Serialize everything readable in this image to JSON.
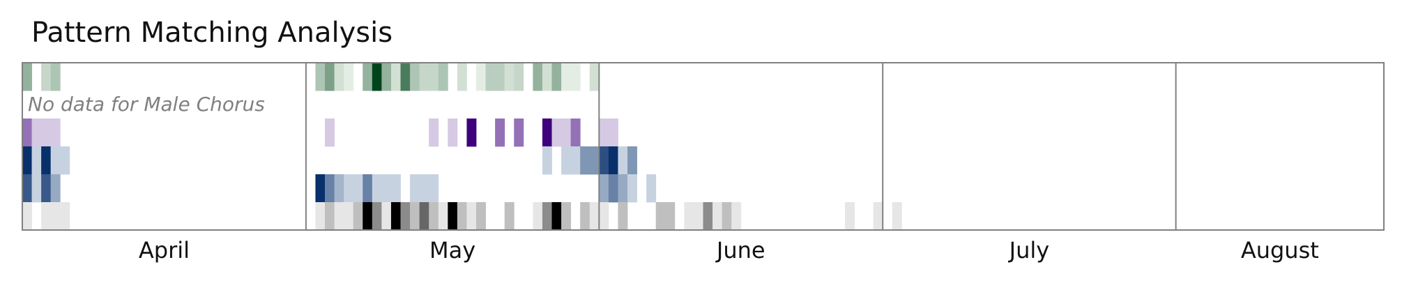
{
  "chart_data": {
    "type": "heatmap",
    "title": "Pattern Matching Analysis",
    "xlabel": "",
    "ylabel": "",
    "x_range": [
      "2024-04-01",
      "2024-08-23"
    ],
    "month_labels": [
      "April",
      "May",
      "June",
      "July",
      "August"
    ],
    "month_boundaries": [
      "2024-04-01",
      "2024-05-01",
      "2024-06-01",
      "2024-07-01",
      "2024-08-01",
      "2024-08-23"
    ],
    "intensity_scale": [
      0,
      1
    ],
    "rows": [
      {
        "color": "#00441b",
        "colormap": "green",
        "cells": [
          [
            "2024-04-01",
            0.4
          ],
          [
            "2024-04-03",
            0.2
          ],
          [
            "2024-04-04",
            0.3
          ],
          [
            "2024-05-02",
            0.3
          ],
          [
            "2024-05-03",
            0.5
          ],
          [
            "2024-05-04",
            0.15
          ],
          [
            "2024-05-05",
            0.08
          ],
          [
            "2024-05-07",
            0.4
          ],
          [
            "2024-05-08",
            1.0
          ],
          [
            "2024-05-09",
            0.4
          ],
          [
            "2024-05-10",
            0.15
          ],
          [
            "2024-05-11",
            0.7
          ],
          [
            "2024-05-12",
            0.3
          ],
          [
            "2024-05-13",
            0.2
          ],
          [
            "2024-05-14",
            0.2
          ],
          [
            "2024-05-15",
            0.3
          ],
          [
            "2024-05-17",
            0.15
          ],
          [
            "2024-05-19",
            0.08
          ],
          [
            "2024-05-20",
            0.25
          ],
          [
            "2024-05-21",
            0.25
          ],
          [
            "2024-05-22",
            0.15
          ],
          [
            "2024-05-23",
            0.2
          ],
          [
            "2024-05-25",
            0.4
          ],
          [
            "2024-05-26",
            0.15
          ],
          [
            "2024-05-27",
            0.4
          ],
          [
            "2024-05-28",
            0.08
          ],
          [
            "2024-05-29",
            0.08
          ],
          [
            "2024-05-31",
            0.15
          ]
        ]
      },
      {
        "color": "#808080",
        "note": "No data for Male Chorus",
        "cells": []
      },
      {
        "color": "#3f007d",
        "colormap": "purple",
        "cells": [
          [
            "2024-04-01",
            0.55
          ],
          [
            "2024-04-02",
            0.2
          ],
          [
            "2024-04-03",
            0.2
          ],
          [
            "2024-04-04",
            0.2
          ],
          [
            "2024-05-03",
            0.2
          ],
          [
            "2024-05-14",
            0.2
          ],
          [
            "2024-05-16",
            0.2
          ],
          [
            "2024-05-18",
            1.0
          ],
          [
            "2024-05-21",
            0.55
          ],
          [
            "2024-05-23",
            0.55
          ],
          [
            "2024-05-26",
            1.0
          ],
          [
            "2024-05-27",
            0.2
          ],
          [
            "2024-05-28",
            0.2
          ],
          [
            "2024-05-29",
            0.55
          ],
          [
            "2024-06-01",
            0.2
          ],
          [
            "2024-06-02",
            0.2
          ]
        ]
      },
      {
        "color": "#08306b",
        "colormap": "blue-dark",
        "cells": [
          [
            "2024-04-01",
            1.0
          ],
          [
            "2024-04-02",
            0.2
          ],
          [
            "2024-04-03",
            1.0
          ],
          [
            "2024-04-04",
            0.2
          ],
          [
            "2024-04-05",
            0.2
          ],
          [
            "2024-05-26",
            0.2
          ],
          [
            "2024-05-28",
            0.2
          ],
          [
            "2024-05-29",
            0.2
          ],
          [
            "2024-05-30",
            0.5
          ],
          [
            "2024-05-31",
            0.5
          ],
          [
            "2024-06-01",
            0.85
          ],
          [
            "2024-06-02",
            1.0
          ],
          [
            "2024-06-03",
            0.2
          ],
          [
            "2024-06-04",
            0.5
          ]
        ]
      },
      {
        "color": "#08306b",
        "colormap": "blue-mid",
        "cells": [
          [
            "2024-04-01",
            0.8
          ],
          [
            "2024-04-02",
            0.2
          ],
          [
            "2024-04-03",
            0.8
          ],
          [
            "2024-04-04",
            0.4
          ],
          [
            "2024-05-02",
            1.0
          ],
          [
            "2024-05-03",
            0.6
          ],
          [
            "2024-05-04",
            0.35
          ],
          [
            "2024-05-05",
            0.2
          ],
          [
            "2024-05-06",
            0.2
          ],
          [
            "2024-05-07",
            0.6
          ],
          [
            "2024-05-08",
            0.2
          ],
          [
            "2024-05-09",
            0.2
          ],
          [
            "2024-05-10",
            0.2
          ],
          [
            "2024-05-12",
            0.2
          ],
          [
            "2024-05-13",
            0.2
          ],
          [
            "2024-05-14",
            0.2
          ],
          [
            "2024-06-01",
            0.4
          ],
          [
            "2024-06-02",
            0.6
          ],
          [
            "2024-06-03",
            0.4
          ],
          [
            "2024-06-04",
            0.2
          ],
          [
            "2024-06-06",
            0.2
          ]
        ]
      },
      {
        "color": "#000000",
        "colormap": "gray",
        "cells": [
          [
            "2024-04-01",
            0.1
          ],
          [
            "2024-04-03",
            0.1
          ],
          [
            "2024-04-04",
            0.1
          ],
          [
            "2024-04-05",
            0.1
          ],
          [
            "2024-05-02",
            0.1
          ],
          [
            "2024-05-03",
            0.25
          ],
          [
            "2024-05-04",
            0.1
          ],
          [
            "2024-05-05",
            0.1
          ],
          [
            "2024-05-06",
            0.25
          ],
          [
            "2024-05-07",
            1.0
          ],
          [
            "2024-05-08",
            0.45
          ],
          [
            "2024-05-09",
            0.1
          ],
          [
            "2024-05-10",
            1.0
          ],
          [
            "2024-05-11",
            0.45
          ],
          [
            "2024-05-12",
            0.25
          ],
          [
            "2024-05-13",
            0.6
          ],
          [
            "2024-05-14",
            0.25
          ],
          [
            "2024-05-15",
            0.1
          ],
          [
            "2024-05-16",
            1.0
          ],
          [
            "2024-05-17",
            0.25
          ],
          [
            "2024-05-18",
            0.1
          ],
          [
            "2024-05-19",
            0.25
          ],
          [
            "2024-05-22",
            0.25
          ],
          [
            "2024-05-25",
            0.1
          ],
          [
            "2024-05-26",
            0.45
          ],
          [
            "2024-05-27",
            1.0
          ],
          [
            "2024-05-28",
            0.25
          ],
          [
            "2024-05-30",
            0.25
          ],
          [
            "2024-05-31",
            0.1
          ],
          [
            "2024-06-01",
            0.1
          ],
          [
            "2024-06-03",
            0.25
          ],
          [
            "2024-06-07",
            0.25
          ],
          [
            "2024-06-08",
            0.25
          ],
          [
            "2024-06-10",
            0.1
          ],
          [
            "2024-06-11",
            0.1
          ],
          [
            "2024-06-12",
            0.45
          ],
          [
            "2024-06-13",
            0.1
          ],
          [
            "2024-06-14",
            0.25
          ],
          [
            "2024-06-15",
            0.1
          ],
          [
            "2024-06-27",
            0.1
          ],
          [
            "2024-06-30",
            0.1
          ],
          [
            "2024-07-02",
            0.1
          ]
        ]
      }
    ]
  }
}
